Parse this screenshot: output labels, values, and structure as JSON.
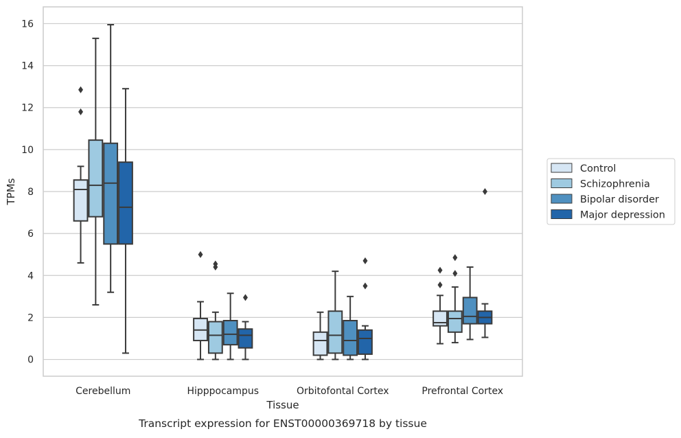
{
  "chart_data": {
    "type": "boxplot",
    "caption": "Transcript expression for ENST00000369718 by tissue",
    "xlabel": "Tissue",
    "ylabel": "TPMs",
    "ylim": [
      -0.8,
      16.8
    ],
    "yticks": [
      0,
      2,
      4,
      6,
      8,
      10,
      12,
      14,
      16
    ],
    "ytick_labels": [
      "0",
      "2",
      "4",
      "6",
      "8",
      "10",
      "12",
      "14",
      "16"
    ],
    "grid": "horizontal",
    "legend_placement": "right",
    "categories": [
      "Cerebellum",
      "Hipppocampus",
      "Orbitofontal Cortex",
      "Prefrontal Cortex"
    ],
    "series": [
      {
        "name": "Control",
        "color": "#d6e6f4",
        "boxes": [
          {
            "whislo": 4.6,
            "q1": 6.6,
            "med": 8.1,
            "q3": 8.55,
            "whishi": 9.2,
            "fliers": [
              11.8,
              12.85
            ]
          },
          {
            "whislo": 0.0,
            "q1": 0.9,
            "med": 1.4,
            "q3": 1.95,
            "whishi": 2.75,
            "fliers": [
              5.0
            ]
          },
          {
            "whislo": 0.0,
            "q1": 0.2,
            "med": 0.9,
            "q3": 1.3,
            "whishi": 2.25,
            "fliers": []
          },
          {
            "whislo": 0.75,
            "q1": 1.6,
            "med": 1.75,
            "q3": 2.3,
            "whishi": 3.05,
            "fliers": [
              3.55,
              4.25
            ]
          }
        ]
      },
      {
        "name": "Schizophrenia",
        "color": "#9ecae1",
        "boxes": [
          {
            "whislo": 2.6,
            "q1": 6.8,
            "med": 8.3,
            "q3": 10.45,
            "whishi": 15.3,
            "fliers": []
          },
          {
            "whislo": 0.0,
            "q1": 0.3,
            "med": 1.15,
            "q3": 1.8,
            "whishi": 2.25,
            "fliers": [
              4.4,
              4.55
            ]
          },
          {
            "whislo": 0.0,
            "q1": 0.3,
            "med": 1.15,
            "q3": 2.3,
            "whishi": 4.2,
            "fliers": []
          },
          {
            "whislo": 0.8,
            "q1": 1.3,
            "med": 1.95,
            "q3": 2.3,
            "whishi": 3.45,
            "fliers": [
              4.1,
              4.85
            ]
          }
        ]
      },
      {
        "name": "Bipolar disorder",
        "color": "#4f90c0",
        "boxes": [
          {
            "whislo": 3.2,
            "q1": 5.5,
            "med": 8.4,
            "q3": 10.3,
            "whishi": 15.95,
            "fliers": []
          },
          {
            "whislo": 0.0,
            "q1": 0.7,
            "med": 1.2,
            "q3": 1.85,
            "whishi": 3.15,
            "fliers": []
          },
          {
            "whislo": 0.0,
            "q1": 0.2,
            "med": 0.9,
            "q3": 1.85,
            "whishi": 3.0,
            "fliers": []
          },
          {
            "whislo": 0.95,
            "q1": 1.7,
            "med": 2.05,
            "q3": 2.95,
            "whishi": 4.4,
            "fliers": []
          }
        ]
      },
      {
        "name": "Major depression",
        "color": "#2265a9",
        "boxes": [
          {
            "whislo": 0.3,
            "q1": 5.5,
            "med": 7.25,
            "q3": 9.4,
            "whishi": 12.9,
            "fliers": []
          },
          {
            "whislo": 0.0,
            "q1": 0.55,
            "med": 1.15,
            "q3": 1.45,
            "whishi": 1.8,
            "fliers": [
              2.95
            ]
          },
          {
            "whislo": 0.0,
            "q1": 0.25,
            "med": 1.0,
            "q3": 1.4,
            "whishi": 1.6,
            "fliers": [
              3.5,
              4.7
            ]
          },
          {
            "whislo": 1.05,
            "q1": 1.7,
            "med": 2.0,
            "q3": 2.3,
            "whishi": 2.65,
            "fliers": [
              8.0
            ]
          }
        ]
      }
    ]
  }
}
